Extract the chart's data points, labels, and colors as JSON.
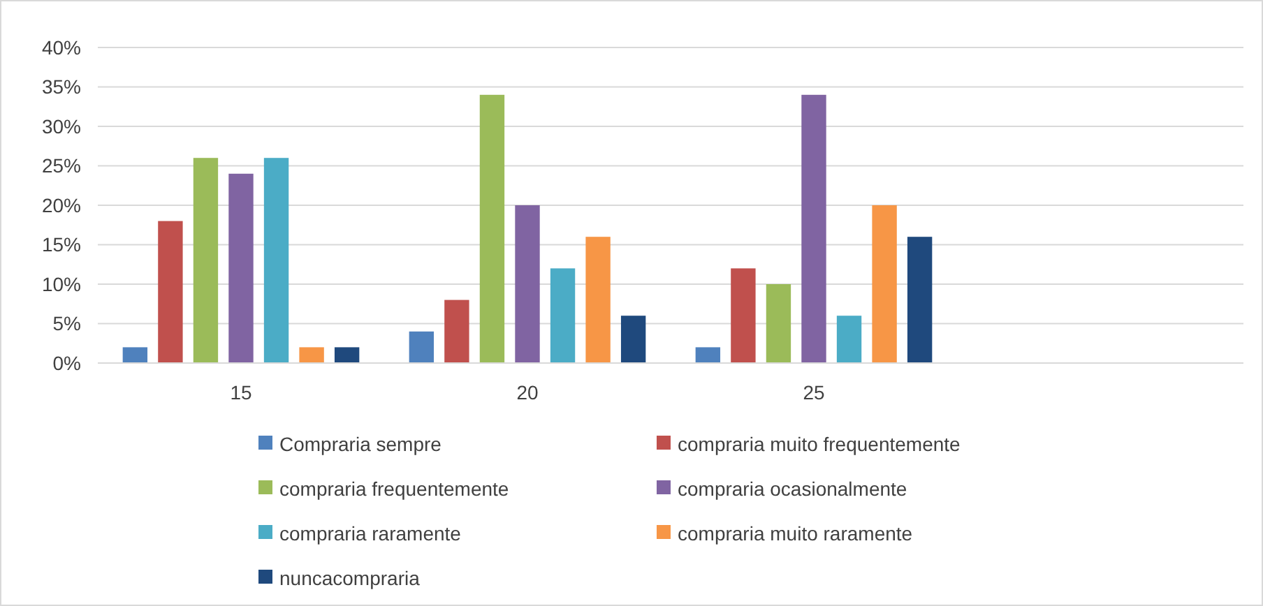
{
  "chart_data": {
    "type": "bar",
    "categories": [
      "15",
      "20",
      "25",
      null
    ],
    "series": [
      {
        "name": "Compraria sempre",
        "color": "#4f81bd",
        "values": [
          2,
          4,
          2,
          null
        ]
      },
      {
        "name": "compraria muito frequentemente",
        "color": "#c0504d",
        "values": [
          18,
          8,
          12,
          null
        ]
      },
      {
        "name": "compraria frequentemente",
        "color": "#9bbb59",
        "values": [
          26,
          34,
          10,
          null
        ]
      },
      {
        "name": "compraria ocasionalmente",
        "color": "#8064a2",
        "values": [
          24,
          20,
          34,
          null
        ]
      },
      {
        "name": "compraria raramente",
        "color": "#4bacc6",
        "values": [
          26,
          12,
          6,
          null
        ]
      },
      {
        "name": "compraria muito raramente",
        "color": "#f79646",
        "values": [
          2,
          16,
          20,
          null
        ]
      },
      {
        "name": "nuncacompraria",
        "color": "#1f497d",
        "values": [
          2,
          6,
          16,
          null
        ]
      }
    ],
    "ylim": [
      0,
      40
    ],
    "yticks": [
      {
        "value": 0,
        "label": "0%"
      },
      {
        "value": 5,
        "label": "5%"
      },
      {
        "value": 10,
        "label": "10%"
      },
      {
        "value": 15,
        "label": "15%"
      },
      {
        "value": 20,
        "label": "20%"
      },
      {
        "value": 25,
        "label": "25%"
      },
      {
        "value": 30,
        "label": "30%"
      },
      {
        "value": 35,
        "label": "35%"
      },
      {
        "value": 40,
        "label": "40%"
      }
    ],
    "grid": "y",
    "legend": "bottom"
  }
}
